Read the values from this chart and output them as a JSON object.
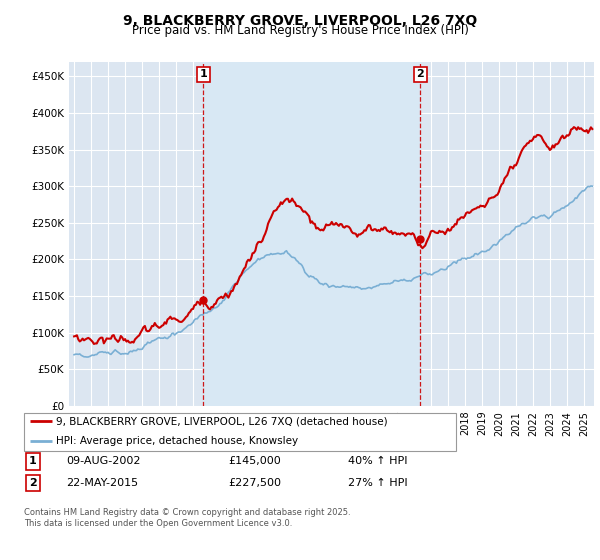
{
  "title": "9, BLACKBERRY GROVE, LIVERPOOL, L26 7XQ",
  "subtitle": "Price paid vs. HM Land Registry's House Price Index (HPI)",
  "legend_line1": "9, BLACKBERRY GROVE, LIVERPOOL, L26 7XQ (detached house)",
  "legend_line2": "HPI: Average price, detached house, Knowsley",
  "annotation1_label": "1",
  "annotation1_date": "09-AUG-2002",
  "annotation1_price": "£145,000",
  "annotation1_hpi": "40% ↑ HPI",
  "annotation2_label": "2",
  "annotation2_date": "22-MAY-2015",
  "annotation2_price": "£227,500",
  "annotation2_hpi": "27% ↑ HPI",
  "footer": "Contains HM Land Registry data © Crown copyright and database right 2025.\nThis data is licensed under the Open Government Licence v3.0.",
  "price_color": "#cc0000",
  "hpi_color": "#7aafd4",
  "annotation_line_color": "#cc0000",
  "shade_color": "#d8e8f4",
  "bg_color": "#dce6f1",
  "plot_bg": "#dce6f1",
  "ylim": [
    0,
    470000
  ],
  "yticks": [
    0,
    50000,
    100000,
    150000,
    200000,
    250000,
    300000,
    350000,
    400000,
    450000
  ],
  "sale1_year": 2002.6,
  "sale1_price": 145000,
  "sale2_year": 2015.38,
  "sale2_price": 227500
}
